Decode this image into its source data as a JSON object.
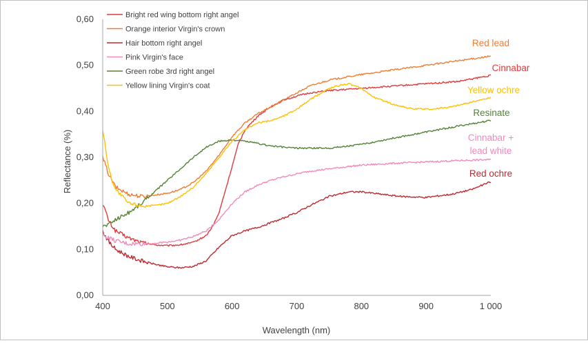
{
  "chart_data": {
    "type": "line",
    "title": "",
    "xlabel": "Wavelength (nm)",
    "ylabel": "Reflectance (%)",
    "xlim": [
      400,
      1000
    ],
    "ylim": [
      0,
      0.6
    ],
    "x_ticks": [
      400,
      500,
      600,
      700,
      800,
      900,
      1000
    ],
    "x_tick_labels": [
      "400",
      "500",
      "600",
      "700",
      "800",
      "900",
      "1 000"
    ],
    "y_ticks": [
      0,
      0.1,
      0.2,
      0.3,
      0.4,
      0.5,
      0.6
    ],
    "y_tick_labels": [
      "0,00",
      "0,10",
      "0,20",
      "0,30",
      "0,40",
      "0,50",
      "0,60"
    ],
    "grid": false,
    "legend_position": "top-left",
    "series": [
      {
        "name": "Bright red wing bottom right angel",
        "color": "#e0393c",
        "end_label": "Cinnabar",
        "x": [
          400,
          410,
          420,
          440,
          460,
          480,
          500,
          520,
          540,
          560,
          570,
          580,
          590,
          600,
          610,
          620,
          640,
          660,
          680,
          700,
          720,
          750,
          800,
          850,
          900,
          950,
          1000
        ],
        "y": [
          0.2,
          0.16,
          0.14,
          0.125,
          0.115,
          0.11,
          0.108,
          0.11,
          0.115,
          0.13,
          0.15,
          0.18,
          0.23,
          0.28,
          0.33,
          0.36,
          0.39,
          0.41,
          0.425,
          0.433,
          0.44,
          0.445,
          0.45,
          0.455,
          0.46,
          0.465,
          0.478
        ]
      },
      {
        "name": "Orange interior Virgin's crown",
        "color": "#ed7d31",
        "end_label": "Red lead",
        "x": [
          400,
          410,
          420,
          440,
          460,
          480,
          500,
          520,
          540,
          560,
          580,
          600,
          620,
          640,
          660,
          680,
          700,
          720,
          750,
          800,
          850,
          900,
          950,
          1000
        ],
        "y": [
          0.3,
          0.26,
          0.235,
          0.22,
          0.215,
          0.218,
          0.222,
          0.23,
          0.245,
          0.27,
          0.305,
          0.345,
          0.375,
          0.395,
          0.41,
          0.425,
          0.44,
          0.455,
          0.468,
          0.48,
          0.49,
          0.5,
          0.51,
          0.52
        ]
      },
      {
        "name": "Hair bottom right angel",
        "color": "#c0272d",
        "end_label": "Red ochre",
        "x": [
          400,
          410,
          420,
          440,
          460,
          480,
          500,
          520,
          540,
          560,
          580,
          600,
          620,
          640,
          660,
          680,
          700,
          720,
          750,
          780,
          800,
          830,
          860,
          900,
          940,
          970,
          1000
        ],
        "y": [
          0.14,
          0.115,
          0.1,
          0.085,
          0.075,
          0.068,
          0.062,
          0.06,
          0.063,
          0.075,
          0.105,
          0.13,
          0.14,
          0.148,
          0.158,
          0.168,
          0.18,
          0.195,
          0.215,
          0.225,
          0.225,
          0.22,
          0.215,
          0.213,
          0.22,
          0.23,
          0.247
        ]
      },
      {
        "name": "Pink Virgin's face",
        "color": "#f08aba",
        "end_label": "Cinnabar +\nlead white",
        "x": [
          400,
          410,
          420,
          440,
          460,
          480,
          500,
          520,
          540,
          560,
          580,
          600,
          620,
          640,
          660,
          680,
          700,
          720,
          750,
          780,
          800,
          850,
          900,
          950,
          1000
        ],
        "y": [
          0.13,
          0.125,
          0.118,
          0.112,
          0.112,
          0.113,
          0.116,
          0.12,
          0.128,
          0.14,
          0.165,
          0.2,
          0.225,
          0.24,
          0.25,
          0.258,
          0.264,
          0.27,
          0.275,
          0.28,
          0.283,
          0.287,
          0.29,
          0.293,
          0.295
        ]
      },
      {
        "name": "Green robe 3rd right angel",
        "color": "#548235",
        "end_label": "Resinate",
        "x": [
          400,
          410,
          420,
          440,
          460,
          480,
          500,
          520,
          540,
          560,
          580,
          600,
          620,
          640,
          660,
          680,
          700,
          720,
          750,
          800,
          850,
          900,
          950,
          1000
        ],
        "y": [
          0.15,
          0.155,
          0.165,
          0.18,
          0.2,
          0.225,
          0.25,
          0.275,
          0.3,
          0.322,
          0.335,
          0.338,
          0.335,
          0.33,
          0.325,
          0.322,
          0.32,
          0.32,
          0.32,
          0.328,
          0.342,
          0.355,
          0.368,
          0.38
        ]
      },
      {
        "name": "Yellow lining Virgin's coat",
        "color": "#ffc000",
        "end_label": "Yellow ochre",
        "x": [
          400,
          410,
          420,
          440,
          460,
          480,
          500,
          520,
          540,
          560,
          580,
          590,
          600,
          620,
          640,
          660,
          680,
          700,
          720,
          750,
          770,
          780,
          800,
          820,
          850,
          880,
          910,
          940,
          970,
          1000
        ],
        "y": [
          0.36,
          0.27,
          0.23,
          0.2,
          0.195,
          0.195,
          0.2,
          0.215,
          0.235,
          0.265,
          0.3,
          0.318,
          0.335,
          0.36,
          0.375,
          0.38,
          0.39,
          0.405,
          0.425,
          0.45,
          0.458,
          0.46,
          0.45,
          0.43,
          0.415,
          0.405,
          0.405,
          0.41,
          0.42,
          0.43
        ]
      }
    ]
  }
}
